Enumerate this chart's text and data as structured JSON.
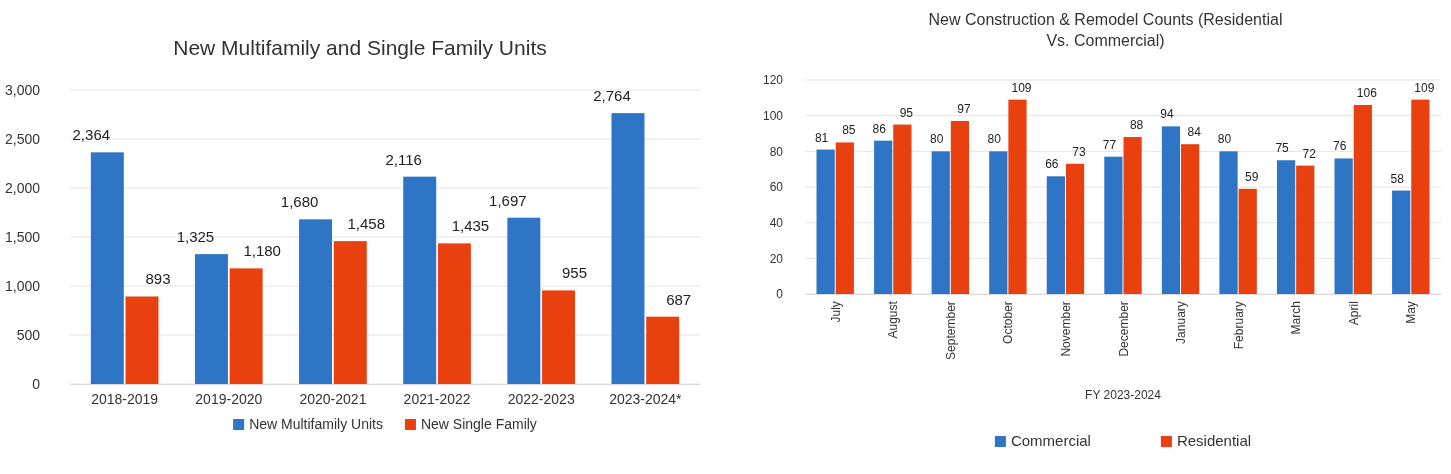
{
  "chart_data": [
    {
      "type": "bar",
      "title": "New Multifamily and Single Family Units",
      "categories": [
        "2018-2019",
        "2019-2020",
        "2020-2021",
        "2021-2022",
        "2022-2023",
        "2023-2024*"
      ],
      "series": [
        {
          "name": "New  Multifamily Units",
          "color": "#2e75c5",
          "values": [
            2364,
            1325,
            1680,
            2116,
            1697,
            2764
          ],
          "value_labels": [
            "2,364",
            "1,325",
            "1,680",
            "2,116",
            "1,697",
            "2,764"
          ]
        },
        {
          "name": "New Single Family",
          "color": "#e8410f",
          "values": [
            893,
            1180,
            1458,
            1435,
            955,
            687
          ],
          "value_labels": [
            "893",
            "1,180",
            "1,458",
            "1,435",
            "955",
            "687"
          ]
        }
      ],
      "ylim": [
        0,
        3000
      ],
      "yticks": [
        0,
        {
          "value": 500,
          "label": "500"
        },
        {
          "value": 1000,
          "label": "1,000"
        },
        {
          "value": 1500,
          "label": "1,500"
        },
        {
          "value": 2000,
          "label": "2,000"
        },
        {
          "value": 2500,
          "label": "2,500"
        },
        {
          "value": 3000,
          "label": "3,000"
        }
      ],
      "grid": "y",
      "legend": "bottom"
    },
    {
      "type": "bar",
      "title": "New Construction & Remodel Counts (Residential Vs. Commercial)",
      "xlabel": "FY 2023-2024",
      "categories": [
        "July",
        "August",
        "September",
        "October",
        "November",
        "December",
        "January",
        "February",
        "March",
        "April",
        "May"
      ],
      "series": [
        {
          "name": "Commercial",
          "color": "#2e75c5",
          "values": [
            81,
            86,
            80,
            80,
            66,
            77,
            94,
            80,
            75,
            76,
            58
          ]
        },
        {
          "name": "Residential",
          "color": "#e8410f",
          "values": [
            85,
            95,
            97,
            109,
            73,
            88,
            84,
            59,
            72,
            106,
            109
          ]
        }
      ],
      "ylim": [
        0,
        120
      ],
      "yticks": [
        0,
        20,
        40,
        60,
        80,
        100,
        120
      ],
      "grid": "y",
      "legend": "bottom",
      "data_labels": true
    }
  ]
}
